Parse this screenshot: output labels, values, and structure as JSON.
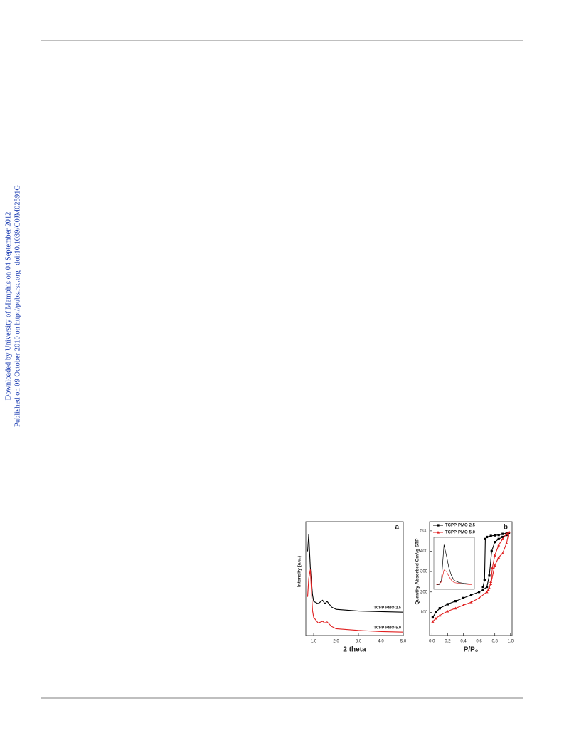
{
  "sidebar": {
    "line1": "Downloaded by University of Memphis on 04 September 2012",
    "line2": "Published on 09 October 2010 on http://pubs.rsc.org | doi:10.1039/C0JM02591G"
  },
  "chart_data": [
    {
      "type": "line",
      "panel": "a",
      "xlabel": "2 theta",
      "ylabel": "Intensity (a.u.)",
      "xlim": [
        0.65,
        5.0
      ],
      "ylim": [
        0,
        100
      ],
      "xticks": [
        {
          "value": 1,
          "label": "1.0"
        },
        {
          "value": 2,
          "label": "2.0"
        },
        {
          "value": 3,
          "label": "3.0"
        },
        {
          "value": 4,
          "label": "4.0"
        },
        {
          "value": 5,
          "label": "5.0"
        }
      ],
      "series": [
        {
          "name": "TCPP-PMO-2.5",
          "color": "#000000",
          "x": [
            0.73,
            0.78,
            0.85,
            0.95,
            1.0,
            1.2,
            1.4,
            1.5,
            1.6,
            1.8,
            2.0,
            3.0,
            4.0,
            5.0
          ],
          "values": [
            74,
            89,
            60,
            36,
            30,
            28,
            31,
            28,
            30,
            25,
            23,
            21.5,
            21,
            20.5
          ]
        },
        {
          "name": "TCPP-PMO-5.0",
          "color": "#e02020",
          "x": [
            0.73,
            0.78,
            0.85,
            0.95,
            1.0,
            1.2,
            1.4,
            1.5,
            1.6,
            1.8,
            2.0,
            3.0,
            4.0,
            5.0
          ],
          "values": [
            34,
            50,
            58,
            22,
            16,
            11,
            12.5,
            11,
            12,
            8,
            6,
            4.5,
            3.5,
            3
          ]
        }
      ]
    },
    {
      "type": "line",
      "panel": "b",
      "xlabel": "P/P₀",
      "ylabel": "Quantity Absorbed Cm³/g STP",
      "xlim": [
        -0.03,
        1.02
      ],
      "ylim": [
        -14,
        545
      ],
      "xticks": [
        {
          "value": 0,
          "label": "0.0"
        },
        {
          "value": 0.2,
          "label": "0.2"
        },
        {
          "value": 0.4,
          "label": "0.4"
        },
        {
          "value": 0.6,
          "label": "0.6"
        },
        {
          "value": 0.8,
          "label": "0.8"
        },
        {
          "value": 1,
          "label": "1.0"
        }
      ],
      "yticks": [
        100,
        200,
        300,
        400,
        500
      ],
      "series": [
        {
          "name": "TCPP-PMO-2.5",
          "color": "#000000",
          "marker": "square",
          "x": [
            0.01,
            0.05,
            0.1,
            0.2,
            0.3,
            0.4,
            0.5,
            0.6,
            0.65,
            0.7,
            0.73,
            0.76,
            0.8,
            0.85,
            0.9,
            0.95,
            0.98,
            0.95,
            0.9,
            0.85,
            0.8,
            0.75,
            0.7,
            0.68,
            0.67,
            0.65
          ],
          "values": [
            75,
            100,
            120,
            140,
            155,
            170,
            185,
            200,
            210,
            225,
            280,
            400,
            445,
            460,
            470,
            480,
            490,
            488,
            485,
            480,
            478,
            475,
            470,
            460,
            260,
            225
          ]
        },
        {
          "name": "TCPP-PMO-5.0",
          "color": "#e02020",
          "marker": "triangle",
          "x": [
            0.01,
            0.05,
            0.1,
            0.2,
            0.3,
            0.4,
            0.5,
            0.6,
            0.7,
            0.75,
            0.8,
            0.85,
            0.9,
            0.95,
            0.98,
            0.95,
            0.9,
            0.85,
            0.8,
            0.77,
            0.75,
            0.73,
            0.72
          ],
          "values": [
            55,
            70,
            85,
            105,
            120,
            135,
            150,
            170,
            200,
            240,
            330,
            370,
            390,
            440,
            495,
            485,
            460,
            430,
            380,
            320,
            250,
            220,
            210
          ]
        }
      ],
      "inset": {
        "xlim": [
          0,
          16
        ],
        "ylim": [
          0,
          70
        ],
        "series": [
          {
            "color": "#000000",
            "x": [
              1,
              2,
              3,
              4,
              5,
              6,
              7,
              8,
              10,
              12,
              15
            ],
            "values": [
              6,
              6,
              12,
              60,
              45,
              28,
              18,
              12,
              9,
              8,
              7
            ]
          },
          {
            "color": "#e02020",
            "x": [
              1,
              2,
              3,
              4,
              5,
              6,
              7,
              8,
              10,
              12,
              15
            ],
            "values": [
              6,
              7,
              10,
              26,
              24,
              17,
              12,
              9,
              8,
              7,
              6
            ]
          }
        ]
      }
    }
  ]
}
